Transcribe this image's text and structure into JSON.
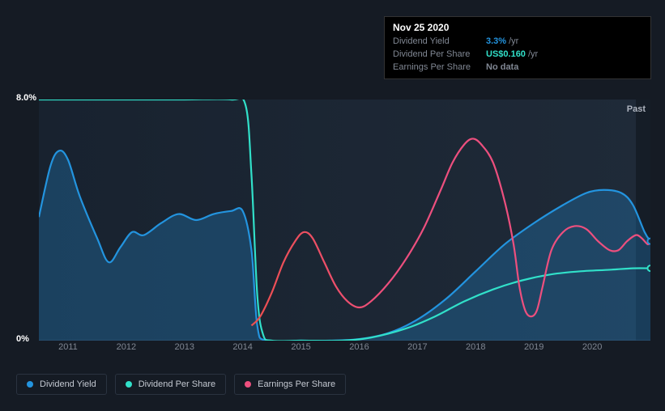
{
  "tooltip": {
    "date": "Nov 25 2020",
    "rows": [
      {
        "label": "Dividend Yield",
        "value": "3.3%",
        "unit": "/yr",
        "color": "#2394df"
      },
      {
        "label": "Dividend Per Share",
        "value": "US$0.160",
        "unit": "/yr",
        "color": "#31e0c9"
      },
      {
        "label": "Earnings Per Share",
        "value": "No data",
        "unit": "",
        "color": "#808793"
      }
    ]
  },
  "chart": {
    "type": "line",
    "background_dark": "#151b24",
    "plot_bg_left": "#18222f",
    "plot_bg_right": "#1f2a38",
    "right_band_color": "#141b25",
    "past_label": "Past",
    "ylim": [
      0,
      8
    ],
    "ylabels": [
      {
        "v": 8,
        "text": "8.0%"
      },
      {
        "v": 0,
        "text": "0%"
      }
    ],
    "x_start": 2010.5,
    "x_end": 2021.0,
    "xticks": [
      2011,
      2012,
      2013,
      2014,
      2015,
      2016,
      2017,
      2018,
      2019,
      2020
    ],
    "series": [
      {
        "key": "dividend_yield",
        "label": "Dividend Yield",
        "color": "#2394df",
        "area": true,
        "points": [
          [
            2010.5,
            4.1
          ],
          [
            2010.7,
            5.8
          ],
          [
            2010.85,
            6.3
          ],
          [
            2011.0,
            6.0
          ],
          [
            2011.2,
            4.8
          ],
          [
            2011.5,
            3.4
          ],
          [
            2011.7,
            2.6
          ],
          [
            2011.9,
            3.1
          ],
          [
            2012.1,
            3.6
          ],
          [
            2012.3,
            3.5
          ],
          [
            2012.6,
            3.9
          ],
          [
            2012.9,
            4.2
          ],
          [
            2013.2,
            4.0
          ],
          [
            2013.5,
            4.2
          ],
          [
            2013.8,
            4.3
          ],
          [
            2014.0,
            4.3
          ],
          [
            2014.15,
            3.0
          ],
          [
            2014.25,
            0.5
          ],
          [
            2014.4,
            0.0
          ],
          [
            2015.0,
            0.0
          ],
          [
            2015.5,
            0.0
          ],
          [
            2016.0,
            0.05
          ],
          [
            2016.5,
            0.25
          ],
          [
            2017.0,
            0.7
          ],
          [
            2017.5,
            1.4
          ],
          [
            2018.0,
            2.3
          ],
          [
            2018.5,
            3.2
          ],
          [
            2019.0,
            3.9
          ],
          [
            2019.5,
            4.5
          ],
          [
            2019.9,
            4.9
          ],
          [
            2020.2,
            5.0
          ],
          [
            2020.5,
            4.9
          ],
          [
            2020.7,
            4.5
          ],
          [
            2020.9,
            3.6
          ],
          [
            2021.0,
            3.3
          ]
        ]
      },
      {
        "key": "dividend_per_share",
        "label": "Dividend Per Share",
        "color": "#31e0c9",
        "area": false,
        "points": [
          [
            2010.5,
            8.0
          ],
          [
            2011.0,
            8.0
          ],
          [
            2012.0,
            8.0
          ],
          [
            2013.0,
            8.0
          ],
          [
            2013.8,
            8.0
          ],
          [
            2014.05,
            7.8
          ],
          [
            2014.15,
            5.5
          ],
          [
            2014.25,
            1.5
          ],
          [
            2014.35,
            0.2
          ],
          [
            2014.5,
            0.0
          ],
          [
            2015.0,
            0.0
          ],
          [
            2015.7,
            0.0
          ],
          [
            2016.2,
            0.1
          ],
          [
            2016.8,
            0.4
          ],
          [
            2017.3,
            0.8
          ],
          [
            2017.8,
            1.3
          ],
          [
            2018.3,
            1.7
          ],
          [
            2018.8,
            2.0
          ],
          [
            2019.3,
            2.2
          ],
          [
            2019.8,
            2.3
          ],
          [
            2020.3,
            2.35
          ],
          [
            2020.7,
            2.4
          ],
          [
            2021.0,
            2.4
          ]
        ]
      },
      {
        "key": "earnings_per_share",
        "label": "Earnings Per Share",
        "color": "#ed4f7e",
        "color_start": "#ed4f4f",
        "area": false,
        "points": [
          [
            2014.15,
            0.5
          ],
          [
            2014.3,
            0.8
          ],
          [
            2014.5,
            1.6
          ],
          [
            2014.7,
            2.6
          ],
          [
            2014.9,
            3.3
          ],
          [
            2015.05,
            3.6
          ],
          [
            2015.2,
            3.4
          ],
          [
            2015.4,
            2.6
          ],
          [
            2015.6,
            1.8
          ],
          [
            2015.8,
            1.3
          ],
          [
            2016.0,
            1.1
          ],
          [
            2016.2,
            1.3
          ],
          [
            2016.5,
            1.9
          ],
          [
            2016.8,
            2.7
          ],
          [
            2017.1,
            3.7
          ],
          [
            2017.4,
            5.0
          ],
          [
            2017.6,
            5.9
          ],
          [
            2017.8,
            6.5
          ],
          [
            2017.95,
            6.7
          ],
          [
            2018.1,
            6.5
          ],
          [
            2018.3,
            5.9
          ],
          [
            2018.5,
            4.6
          ],
          [
            2018.65,
            3.2
          ],
          [
            2018.75,
            1.8
          ],
          [
            2018.85,
            1.0
          ],
          [
            2018.95,
            0.8
          ],
          [
            2019.05,
            1.0
          ],
          [
            2019.15,
            1.8
          ],
          [
            2019.3,
            3.0
          ],
          [
            2019.5,
            3.6
          ],
          [
            2019.7,
            3.8
          ],
          [
            2019.9,
            3.7
          ],
          [
            2020.1,
            3.3
          ],
          [
            2020.3,
            3.0
          ],
          [
            2020.45,
            3.0
          ],
          [
            2020.6,
            3.3
          ],
          [
            2020.75,
            3.5
          ],
          [
            2020.85,
            3.4
          ],
          [
            2020.95,
            3.2
          ],
          [
            2021.0,
            3.25
          ]
        ]
      }
    ],
    "end_markers": [
      {
        "series": "dividend_yield",
        "color": "#2394df"
      },
      {
        "series": "dividend_per_share",
        "color": "#31e0c9"
      }
    ]
  },
  "legend": [
    {
      "label": "Dividend Yield",
      "color": "#2394df",
      "key": "dividend_yield"
    },
    {
      "label": "Dividend Per Share",
      "color": "#31e0c9",
      "key": "dividend_per_share"
    },
    {
      "label": "Earnings Per Share",
      "color": "#ed4f7e",
      "key": "earnings_per_share"
    }
  ]
}
